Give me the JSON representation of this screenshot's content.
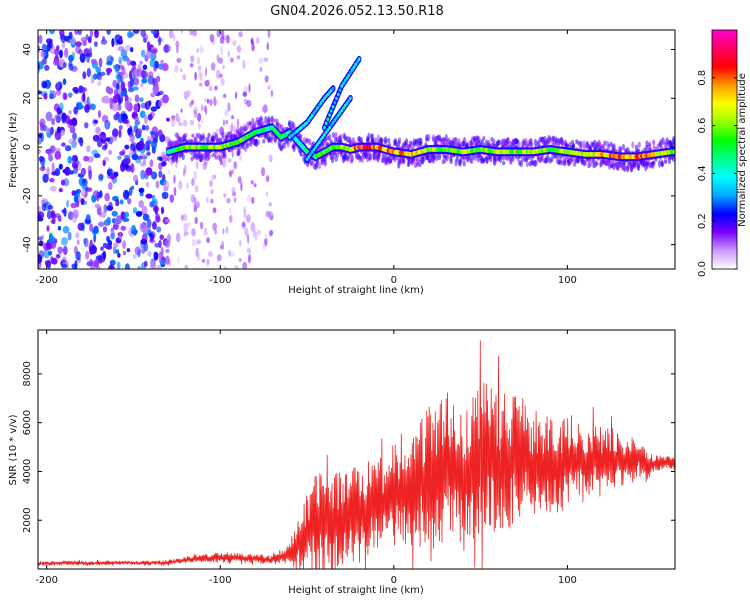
{
  "title": "GN04.2026.052.13.50.R18",
  "chart_data": [
    {
      "type": "heatmap",
      "xlabel": "Height of straight line (km)",
      "ylabel": "Frequency (Hz)",
      "xlim": [
        -205,
        162
      ],
      "ylim": [
        -50,
        48
      ],
      "x_ticks": [
        "-200",
        "-100",
        "0",
        "100"
      ],
      "x_tick_values": [
        -200,
        -100,
        0,
        100
      ],
      "y_ticks": [
        "40",
        "20",
        "0",
        "-20",
        "-40"
      ],
      "y_tick_values": [
        40,
        20,
        0,
        -20,
        -40
      ],
      "colorbar": {
        "label": "Normalized spectral amplitude",
        "range": [
          0,
          1
        ],
        "ticks": [
          "0.0",
          "0.2",
          "0.4",
          "0.6",
          "0.8"
        ],
        "tick_values": [
          0.0,
          0.2,
          0.4,
          0.6,
          0.8
        ],
        "colormap": [
          "#ffffff",
          "#cc99ff",
          "#7a00ff",
          "#0000ff",
          "#00aaff",
          "#00ffff",
          "#00ff88",
          "#00ff00",
          "#99ff00",
          "#ffff00",
          "#ff9900",
          "#ff0000",
          "#ff0066",
          "#ff00cc"
        ]
      },
      "ridge": {
        "x": [
          -130,
          -120,
          -110,
          -100,
          -90,
          -80,
          -70,
          -65,
          -60,
          -55,
          -50,
          -45,
          -40,
          -35,
          -30,
          -25,
          -20,
          -10,
          0,
          10,
          20,
          30,
          40,
          50,
          60,
          70,
          80,
          90,
          100,
          110,
          120,
          130,
          140,
          150,
          160
        ],
        "freq_hz": [
          -2,
          0,
          0,
          0,
          2,
          6,
          8,
          4,
          6,
          2,
          -2,
          -4,
          -2,
          0,
          0,
          -1,
          0,
          0,
          -2,
          -3,
          -1,
          -1,
          -2,
          -1,
          -2,
          -2,
          -2,
          -1,
          -2,
          -3,
          -3,
          -4,
          -4,
          -3,
          -2
        ],
        "amplitude": [
          0.45,
          0.55,
          0.6,
          0.6,
          0.55,
          0.5,
          0.45,
          0.5,
          0.45,
          0.4,
          0.45,
          0.5,
          0.55,
          0.55,
          0.6,
          0.65,
          0.85,
          0.8,
          0.75,
          0.7,
          0.6,
          0.55,
          0.6,
          0.55,
          0.6,
          0.6,
          0.65,
          0.55,
          0.6,
          0.65,
          0.7,
          0.8,
          0.8,
          0.7,
          0.6
        ]
      },
      "branches": [
        {
          "x": [
            -60,
            -50,
            -40,
            -35
          ],
          "freq_hz": [
            4,
            10,
            20,
            24
          ]
        },
        {
          "x": [
            -50,
            -40,
            -30,
            -25
          ],
          "freq_hz": [
            -5,
            5,
            15,
            20
          ]
        },
        {
          "x": [
            -40,
            -30,
            -20
          ],
          "freq_hz": [
            8,
            25,
            36
          ]
        }
      ],
      "noise_region": {
        "x": [
          -205,
          -130
        ],
        "amplitude": 0.25
      },
      "sparse_region": {
        "x": [
          -130,
          -70
        ],
        "amplitude": 0.1
      }
    },
    {
      "type": "line",
      "xlabel": "Height of straight line (km)",
      "ylabel": "SNR (10 * v/v)",
      "xlim": [
        -205,
        162
      ],
      "ylim": [
        0,
        9800
      ],
      "x_ticks": [
        "-200",
        "-100",
        "0",
        "100"
      ],
      "x_tick_values": [
        -200,
        -100,
        0,
        100
      ],
      "y_ticks": [
        "8000",
        "6000",
        "4000",
        "2000"
      ],
      "y_tick_values": [
        8000,
        6000,
        4000,
        2000
      ],
      "color": "#ee2222",
      "series": [
        {
          "x": [
            -205,
            -190,
            -175,
            -160,
            -145,
            -130,
            -120,
            -110,
            -100,
            -90,
            -80,
            -70,
            -60,
            -55,
            -50,
            -45,
            -40,
            -35,
            -30,
            -25,
            -20,
            -15,
            -10,
            -5,
            0,
            5,
            10,
            15,
            20,
            25,
            30,
            35,
            40,
            45,
            50,
            55,
            60,
            65,
            70,
            75,
            80,
            85,
            90,
            95,
            100,
            105,
            110,
            115,
            120,
            125,
            130,
            135,
            140,
            145,
            150,
            155,
            162
          ],
          "values": [
            220,
            250,
            230,
            270,
            240,
            260,
            380,
            430,
            470,
            460,
            420,
            380,
            650,
            1000,
            1500,
            1900,
            1800,
            1900,
            2100,
            2500,
            2200,
            2500,
            2800,
            2600,
            3100,
            3300,
            3100,
            3500,
            3800,
            3600,
            4300,
            4000,
            3800,
            4100,
            4300,
            4600,
            4200,
            4400,
            4500,
            4600,
            4100,
            4300,
            4400,
            4000,
            4500,
            4600,
            4300,
            4500,
            4400,
            4600,
            4400,
            4300,
            4700,
            4200,
            4300,
            4400,
            4300
          ],
          "amplitude": [
            80,
            80,
            80,
            80,
            80,
            90,
            120,
            150,
            180,
            180,
            160,
            150,
            400,
            1000,
            1500,
            2000,
            1800,
            1900,
            1800,
            1700,
            1800,
            1600,
            1700,
            1800,
            2000,
            2200,
            2100,
            2400,
            2600,
            2700,
            2800,
            2600,
            2700,
            2900,
            3000,
            2900,
            2800,
            2600,
            2500,
            2400,
            2200,
            2000,
            1900,
            1800,
            1700,
            1600,
            1500,
            1400,
            1300,
            1200,
            1100,
            900,
            800,
            600,
            300,
            250,
            250
          ]
        }
      ]
    }
  ]
}
